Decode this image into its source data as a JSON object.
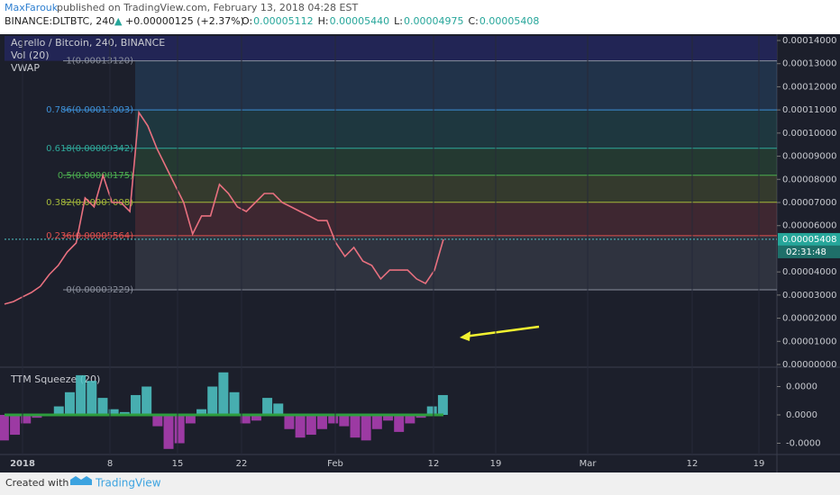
{
  "header": {
    "author": "MaxFarouk",
    "published": "published on TradingView.com, February 13, 2018 04:28 EST",
    "symbol": "BINANCE:DLTBTC, 240",
    "change": "+0.00000125 (+2.37%)",
    "ohlc": [
      {
        "key": "O:",
        "value": "0.00005112"
      },
      {
        "key": "H:",
        "value": "0.00005440"
      },
      {
        "key": "L:",
        "value": "0.00004975"
      },
      {
        "key": "C:",
        "value": "0.00005408"
      }
    ]
  },
  "legend": {
    "title": "Agrello / Bitcoin, 240, BINANCE",
    "indicators": [
      "Vol (20)",
      "VWAP"
    ]
  },
  "chart_data": [
    {
      "type": "line",
      "color": "#e8707f",
      "values": [
        2.61e-05,
        2.72e-05,
        2.92e-05,
        3.11e-05,
        3.38e-05,
        3.89e-05,
        4.28e-05,
        4.86e-05,
        5.25e-05,
        7.2e-05,
        6.81e-05,
        8.17e-05,
        7e-05,
        7e-05,
        6.61e-05,
        0.0001089,
        0.0001031,
        9.34e-05,
        8.56e-05,
        7.78e-05,
        7e-05,
        5.64e-05,
        6.42e-05,
        6.42e-05,
        7.78e-05,
        7.39e-05,
        6.81e-05,
        6.61e-05,
        7e-05,
        7.39e-05,
        7.39e-05,
        7e-05,
        6.81e-05,
        6.61e-05,
        6.42e-05,
        6.22e-05,
        6.22e-05,
        5.25e-05,
        4.67e-05,
        5.06e-05,
        4.47e-05,
        4.28e-05,
        3.7e-05,
        4.08e-05,
        4.08e-05,
        4.08e-05,
        3.7e-05,
        3.5e-05,
        4.08e-05,
        5.408e-05
      ],
      "ylim": [
        0,
        0.00014
      ],
      "yticks": [
        {
          "value": 0.00014,
          "label": "0.00014000"
        },
        {
          "value": 0.00013,
          "label": "0.00013000"
        },
        {
          "value": 0.00012,
          "label": "0.00012000"
        },
        {
          "value": 0.00011,
          "label": "0.00011000"
        },
        {
          "value": 0.0001,
          "label": "0.00010000"
        },
        {
          "value": 9e-05,
          "label": "0.00009000"
        },
        {
          "value": 8e-05,
          "label": "0.00008000"
        },
        {
          "value": 7e-05,
          "label": "0.00007000"
        },
        {
          "value": 6e-05,
          "label": "0.00006000"
        },
        {
          "value": 4e-05,
          "label": "0.00004000"
        },
        {
          "value": 3e-05,
          "label": "0.00003000"
        },
        {
          "value": 2e-05,
          "label": "0.00002000"
        },
        {
          "value": 1e-05,
          "label": "0.00001000"
        },
        {
          "value": 0,
          "label": "0.00000000"
        }
      ],
      "fib_levels": [
        {
          "price": 0.0001312,
          "label": "1(0.00013120)",
          "color": "#8a8f9c"
        },
        {
          "price": 0.00011003,
          "label": "0.786(0.00011003)",
          "color": "#3d8fd6"
        },
        {
          "price": 9.342e-05,
          "label": "0.618(0.00009342)",
          "color": "#2fa89a"
        },
        {
          "price": 8.175e-05,
          "label": "0.5(0.00008175)",
          "color": "#4caf50"
        },
        {
          "price": 7.008e-05,
          "label": "0.382(0.00007008)",
          "color": "#a4b83a"
        },
        {
          "price": 5.564e-05,
          "label": "0.236(0.00005564)",
          "color": "#e0504e"
        },
        {
          "price": 3.229e-05,
          "label": "0(0.00003229)",
          "color": "#8a8f9c"
        }
      ],
      "last_price": {
        "value": 5.408e-05,
        "label": "0.00005408"
      },
      "countdown": "02:31:48"
    },
    {
      "type": "bar",
      "title": "TTM Squeeze (20)",
      "positive_color": "#4fc8c8",
      "negative_color": "#b33fb8",
      "values": [
        -9e-06,
        -7e-06,
        -3e-06,
        -1e-06,
        0,
        3e-06,
        8e-06,
        1.4e-05,
        1.2e-05,
        6e-06,
        2e-06,
        1e-06,
        7e-06,
        1e-05,
        -4e-06,
        -1.2e-05,
        -1e-05,
        -3e-06,
        2e-06,
        1e-05,
        1.5e-05,
        8e-06,
        -3e-06,
        -2e-06,
        6e-06,
        4e-06,
        -5e-06,
        -8e-06,
        -7e-06,
        -5e-06,
        -3e-06,
        -4e-06,
        -8e-06,
        -9e-06,
        -5e-06,
        -2e-06,
        -6e-06,
        -3e-06,
        -1e-06,
        3e-06,
        7e-06
      ],
      "ylim": [
        -1.5e-05,
        1.6e-05
      ],
      "yticks": [
        {
          "value": 1e-05,
          "label": "0.0000"
        },
        {
          "value": 0,
          "label": "0.0000"
        },
        {
          "value": -1e-05,
          "label": "-0.0000"
        }
      ]
    }
  ],
  "time_axis": {
    "labels": [
      "2018",
      "8",
      "15",
      "22",
      "Feb",
      "12",
      "19",
      "Mar",
      "12",
      "19"
    ]
  },
  "footer": {
    "text": "Created with",
    "brand": "TradingView"
  }
}
